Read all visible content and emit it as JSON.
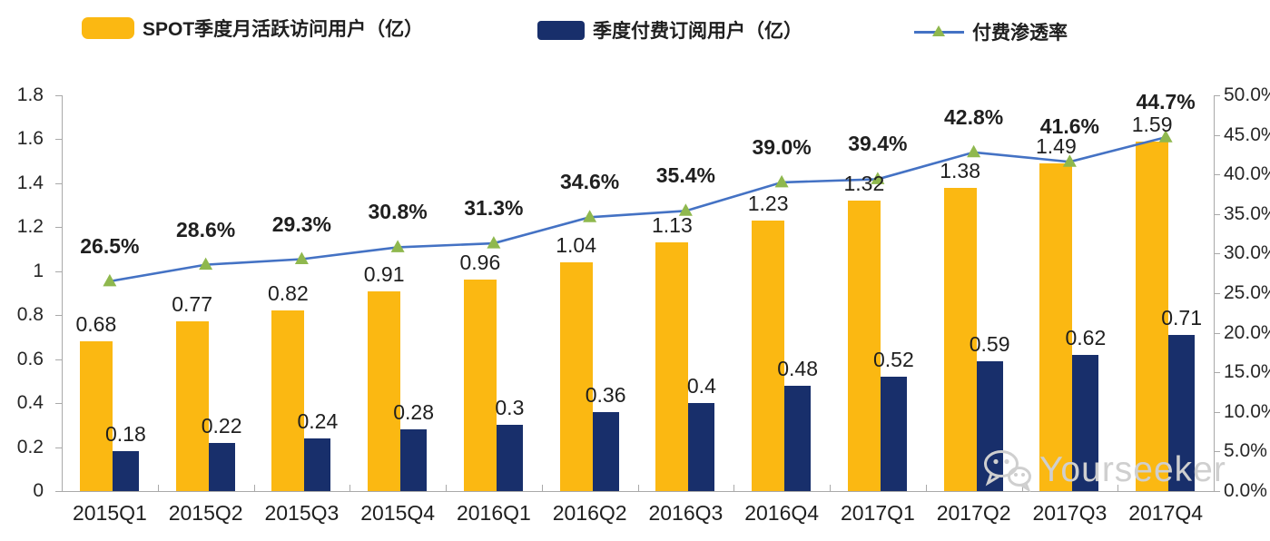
{
  "legend": {
    "items": [
      {
        "label": "SPOT季度月活跃访问用户（亿）",
        "swatch": "bar",
        "color": "#FBB812"
      },
      {
        "label": "季度付费订阅用户（亿）",
        "swatch": "bar",
        "color": "#182F6B"
      },
      {
        "label": "付费渗透率",
        "swatch": "line",
        "line_color": "#4472C4",
        "marker_color": "#8FB84E"
      }
    ]
  },
  "chart_data": {
    "type": "bar",
    "subtype": "combo-bar-line-dual-axis",
    "categories": [
      "2015Q1",
      "2015Q2",
      "2015Q3",
      "2015Q4",
      "2016Q1",
      "2016Q2",
      "2016Q3",
      "2016Q4",
      "2017Q1",
      "2017Q2",
      "2017Q3",
      "2017Q4"
    ],
    "series": [
      {
        "name": "SPOT季度月活跃访问用户（亿）",
        "type": "bar",
        "axis": "left",
        "color": "#FBB812",
        "values": [
          0.68,
          0.77,
          0.82,
          0.91,
          0.96,
          1.04,
          1.13,
          1.23,
          1.32,
          1.38,
          1.49,
          1.59
        ],
        "labels": [
          "0.68",
          "0.77",
          "0.82",
          "0.91",
          "0.96",
          "1.04",
          "1.13",
          "1.23",
          "1.32",
          "1.38",
          "1.49",
          "1.59"
        ]
      },
      {
        "name": "季度付费订阅用户（亿）",
        "type": "bar",
        "axis": "left",
        "color": "#182F6B",
        "values": [
          0.18,
          0.22,
          0.24,
          0.28,
          0.3,
          0.36,
          0.4,
          0.48,
          0.52,
          0.59,
          0.62,
          0.71
        ],
        "labels": [
          "0.18",
          "0.22",
          "0.24",
          "0.28",
          "0.3",
          "0.36",
          "0.4",
          "0.48",
          "0.52",
          "0.59",
          "0.62",
          "0.71"
        ]
      },
      {
        "name": "付费渗透率",
        "type": "line",
        "axis": "right",
        "color": "#4472C4",
        "marker": "triangle",
        "marker_color": "#8FB84E",
        "values": [
          26.5,
          28.6,
          29.3,
          30.8,
          31.3,
          34.6,
          35.4,
          39.0,
          39.4,
          42.8,
          41.6,
          44.7
        ],
        "labels": [
          "26.5%",
          "28.6%",
          "29.3%",
          "30.8%",
          "31.3%",
          "34.6%",
          "35.4%",
          "39.0%",
          "39.4%",
          "42.8%",
          "41.6%",
          "44.7%"
        ]
      }
    ],
    "left_axis": {
      "min": 0,
      "max": 1.8,
      "step": 0.2,
      "ticks": [
        "1.8",
        "1.6",
        "1.4",
        "1.2",
        "1",
        "0.8",
        "0.6",
        "0.4",
        "0.2",
        "0"
      ]
    },
    "right_axis": {
      "min": 0,
      "max": 50,
      "step": 5,
      "ticks": [
        "50.0%",
        "45.0%",
        "40.0%",
        "35.0%",
        "30.0%",
        "25.0%",
        "20.0%",
        "15.0%",
        "10.0%",
        "5.0%",
        "0.0%"
      ]
    },
    "grid": false,
    "legend_position": "top",
    "axis_color": "#A9A9A9"
  },
  "watermark": {
    "text": "Yourseeker",
    "icon": "wechat-icon",
    "color": "#CFCFCF"
  }
}
